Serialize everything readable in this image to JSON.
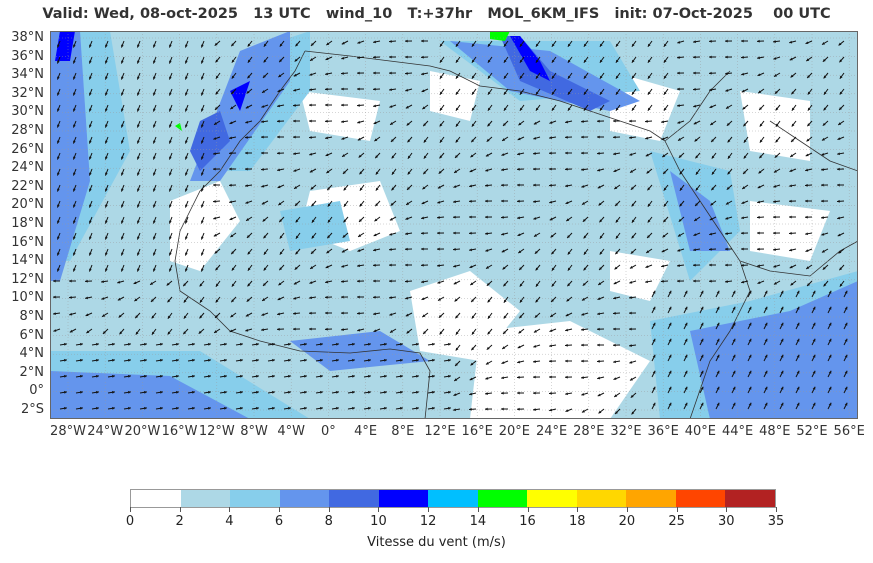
{
  "title": "Valid: Wed, 08-oct-2025   13 UTC   wind_10   T:+37hr   MOL_6KM_IFS   init: 07-Oct-2025    00 UTC",
  "map": {
    "lat_labels": [
      "38°N",
      "36°N",
      "34°N",
      "32°N",
      "30°N",
      "28°N",
      "26°N",
      "24°N",
      "22°N",
      "20°N",
      "18°N",
      "16°N",
      "14°N",
      "12°N",
      "10°N",
      "8°N",
      "6°N",
      "4°N",
      "2°N",
      "0°",
      "2°S"
    ],
    "lon_labels": [
      "28°W",
      "24°W",
      "20°W",
      "16°W",
      "12°W",
      "8°W",
      "4°W",
      "0°",
      "4°E",
      "8°E",
      "12°E",
      "16°E",
      "20°E",
      "24°E",
      "28°E",
      "32°E",
      "36°E",
      "40°E",
      "44°E",
      "48°E",
      "52°E",
      "56°E"
    ],
    "ocean_color": "#87ceeb",
    "land_color": "#ffffff",
    "icons": [
      "wind-arrow-icon"
    ]
  },
  "colorbar": {
    "tick_labels": [
      "0",
      "2",
      "4",
      "6",
      "8",
      "10",
      "12",
      "14",
      "16",
      "18",
      "20",
      "25",
      "30",
      "35"
    ],
    "colors": [
      "#ffffff",
      "#add8e6",
      "#87ceeb",
      "#6495ed",
      "#4169e1",
      "#0000ff",
      "#00bfff",
      "#00ff00",
      "#ffff00",
      "#ffd700",
      "#ffa500",
      "#ff4500",
      "#b22222"
    ],
    "label": "Vitesse du vent (m/s)"
  }
}
